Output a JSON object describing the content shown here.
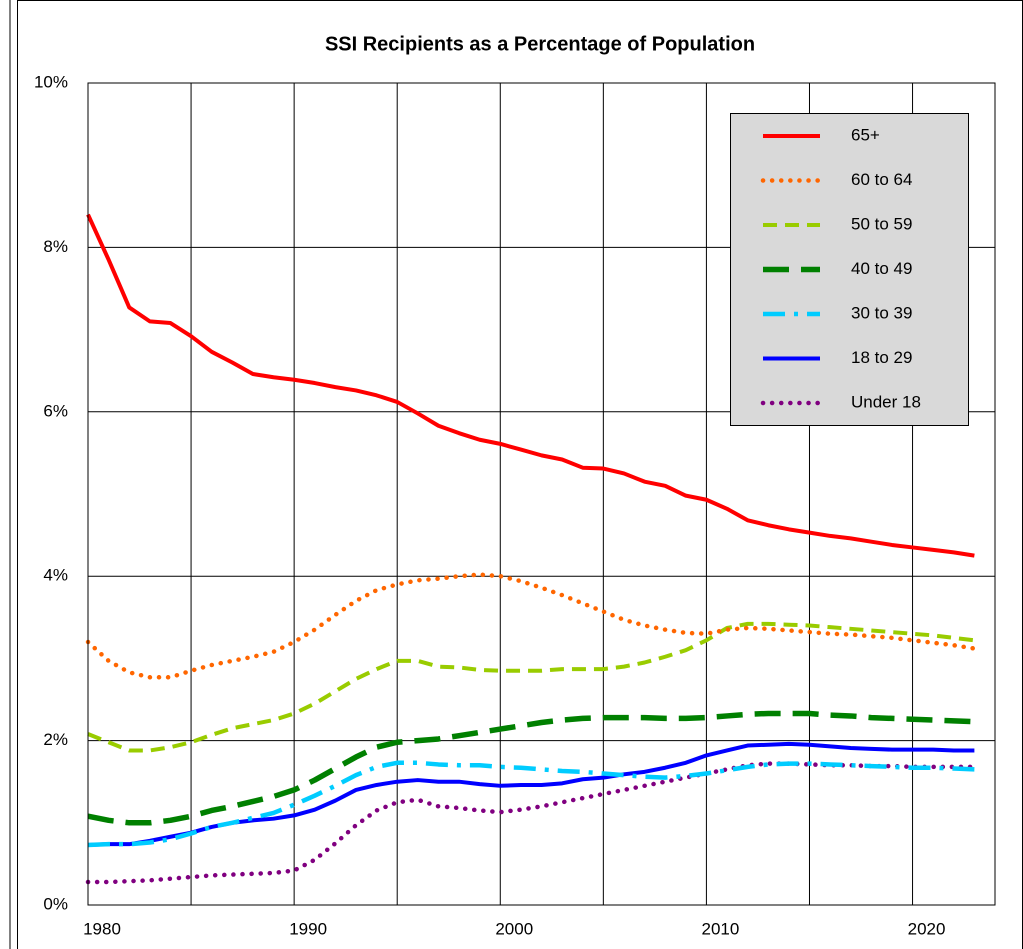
{
  "chart_data": {
    "type": "line",
    "title": "SSI Recipients as a Percentage of Population",
    "x": [
      1980,
      1981,
      1982,
      1983,
      1984,
      1985,
      1986,
      1987,
      1988,
      1989,
      1990,
      1991,
      1992,
      1993,
      1994,
      1995,
      1996,
      1997,
      1998,
      1999,
      2000,
      2001,
      2002,
      2003,
      2004,
      2005,
      2006,
      2007,
      2008,
      2009,
      2010,
      2011,
      2012,
      2013,
      2014,
      2015,
      2016,
      2017,
      2018,
      2019,
      2020,
      2021,
      2022,
      2023
    ],
    "xlim": [
      1980,
      2024
    ],
    "xticks": [
      1980,
      1990,
      2000,
      2010,
      2020
    ],
    "xminor": [
      1985,
      1995,
      2005,
      2015
    ],
    "ylim": [
      0,
      10
    ],
    "yticks": [
      {
        "value": 0,
        "label": "0%"
      },
      {
        "value": 2,
        "label": "2%"
      },
      {
        "value": 4,
        "label": "4%"
      },
      {
        "value": 6,
        "label": "6%"
      },
      {
        "value": 8,
        "label": "8%"
      },
      {
        "value": 10,
        "label": "10%"
      }
    ],
    "grid": true,
    "legend": "top-right",
    "series": [
      {
        "name": "65+",
        "color": "#ff0000",
        "dash": "solid",
        "values": [
          8.4,
          7.85,
          7.27,
          7.1,
          7.08,
          6.92,
          6.73,
          6.6,
          6.46,
          6.42,
          6.39,
          6.35,
          6.3,
          6.26,
          6.2,
          6.12,
          5.98,
          5.83,
          5.74,
          5.66,
          5.61,
          5.54,
          5.47,
          5.42,
          5.32,
          5.31,
          5.25,
          5.15,
          5.1,
          4.98,
          4.93,
          4.82,
          4.68,
          4.62,
          4.57,
          4.53,
          4.49,
          4.46,
          4.42,
          4.38,
          4.35,
          4.32,
          4.29,
          4.25
        ]
      },
      {
        "name": "60 to 64",
        "color": "#ff6600",
        "dash": "dot",
        "values": [
          3.2,
          2.97,
          2.83,
          2.77,
          2.77,
          2.85,
          2.92,
          2.97,
          3.02,
          3.08,
          3.2,
          3.35,
          3.53,
          3.7,
          3.83,
          3.9,
          3.95,
          3.97,
          4.0,
          4.02,
          4.0,
          3.94,
          3.86,
          3.77,
          3.67,
          3.57,
          3.47,
          3.4,
          3.35,
          3.31,
          3.3,
          3.35,
          3.37,
          3.36,
          3.34,
          3.32,
          3.3,
          3.29,
          3.27,
          3.25,
          3.22,
          3.19,
          3.16,
          3.12
        ]
      },
      {
        "name": "50 to 59",
        "color": "#99cc00",
        "dash": "dash",
        "values": [
          2.08,
          1.98,
          1.88,
          1.88,
          1.92,
          1.98,
          2.07,
          2.15,
          2.2,
          2.25,
          2.33,
          2.45,
          2.6,
          2.75,
          2.87,
          2.97,
          2.97,
          2.9,
          2.89,
          2.86,
          2.85,
          2.85,
          2.85,
          2.87,
          2.87,
          2.87,
          2.9,
          2.95,
          3.02,
          3.1,
          3.22,
          3.37,
          3.42,
          3.42,
          3.41,
          3.4,
          3.38,
          3.36,
          3.34,
          3.32,
          3.3,
          3.28,
          3.25,
          3.22
        ]
      },
      {
        "name": "40 to 49",
        "color": "#008000",
        "dash": "longdash",
        "values": [
          1.08,
          1.03,
          1.0,
          1.0,
          1.03,
          1.08,
          1.15,
          1.2,
          1.26,
          1.32,
          1.4,
          1.52,
          1.66,
          1.8,
          1.92,
          1.98,
          2.0,
          2.02,
          2.06,
          2.1,
          2.14,
          2.18,
          2.22,
          2.25,
          2.27,
          2.28,
          2.28,
          2.28,
          2.27,
          2.27,
          2.28,
          2.3,
          2.32,
          2.33,
          2.33,
          2.33,
          2.31,
          2.3,
          2.28,
          2.27,
          2.26,
          2.25,
          2.24,
          2.23
        ]
      },
      {
        "name": "30 to 39",
        "color": "#00ccff",
        "dash": "dashdot",
        "values": [
          0.73,
          0.74,
          0.74,
          0.76,
          0.8,
          0.87,
          0.95,
          1.0,
          1.06,
          1.12,
          1.22,
          1.33,
          1.45,
          1.58,
          1.68,
          1.73,
          1.73,
          1.71,
          1.7,
          1.7,
          1.68,
          1.67,
          1.65,
          1.63,
          1.62,
          1.6,
          1.58,
          1.56,
          1.55,
          1.57,
          1.6,
          1.64,
          1.68,
          1.71,
          1.72,
          1.72,
          1.71,
          1.7,
          1.69,
          1.68,
          1.67,
          1.67,
          1.66,
          1.65
        ]
      },
      {
        "name": "18 to 29",
        "color": "#0000ff",
        "dash": "solid",
        "values": [
          0.73,
          0.74,
          0.74,
          0.78,
          0.83,
          0.88,
          0.95,
          1.0,
          1.03,
          1.05,
          1.09,
          1.16,
          1.27,
          1.4,
          1.46,
          1.5,
          1.52,
          1.5,
          1.5,
          1.47,
          1.45,
          1.46,
          1.46,
          1.48,
          1.53,
          1.55,
          1.59,
          1.62,
          1.67,
          1.73,
          1.82,
          1.88,
          1.94,
          1.95,
          1.96,
          1.95,
          1.93,
          1.91,
          1.9,
          1.89,
          1.89,
          1.89,
          1.88,
          1.88
        ]
      },
      {
        "name": "Under 18",
        "color": "#800080",
        "dash": "dot",
        "values": [
          0.28,
          0.28,
          0.29,
          0.3,
          0.32,
          0.34,
          0.36,
          0.37,
          0.38,
          0.39,
          0.42,
          0.55,
          0.75,
          0.97,
          1.15,
          1.25,
          1.28,
          1.2,
          1.18,
          1.15,
          1.13,
          1.16,
          1.2,
          1.25,
          1.3,
          1.35,
          1.4,
          1.45,
          1.5,
          1.55,
          1.6,
          1.65,
          1.7,
          1.72,
          1.72,
          1.71,
          1.7,
          1.7,
          1.69,
          1.69,
          1.68,
          1.68,
          1.68,
          1.68
        ]
      }
    ]
  }
}
